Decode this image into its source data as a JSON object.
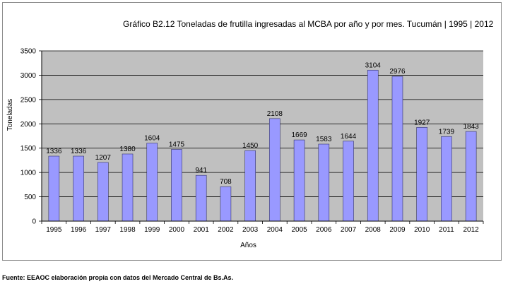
{
  "chart_data": {
    "type": "bar",
    "title": "Gráfico B2.12 Toneladas de frutilla ingresadas  al MCBA por año  y por mes. Tucumán | 1995 | 2012",
    "xlabel": "Años",
    "ylabel": "Toneladas",
    "categories": [
      "1995",
      "1996",
      "1997",
      "1998",
      "1999",
      "2000",
      "2001",
      "2002",
      "2003",
      "2004",
      "2005",
      "2006",
      "2007",
      "2008",
      "2009",
      "2010",
      "2011",
      "2012"
    ],
    "values": [
      1336,
      1336,
      1207,
      1380,
      1604,
      1475,
      941,
      708,
      1450,
      2108,
      1669,
      1583,
      1644,
      3104,
      2976,
      1927,
      1739,
      1843
    ],
    "ylim": [
      0,
      3500
    ],
    "yticks": [
      0,
      500,
      1000,
      1500,
      2000,
      2500,
      3000,
      3500
    ],
    "grid": true,
    "legend": "none",
    "colors": {
      "bar": "#9999ff",
      "bar_stroke": "#333366",
      "plot_bg": "#c0c0c0",
      "grid": "#000000"
    }
  },
  "footer": "Fuente: EEAOC elaboración propia con datos del Mercado Central de Bs.As."
}
